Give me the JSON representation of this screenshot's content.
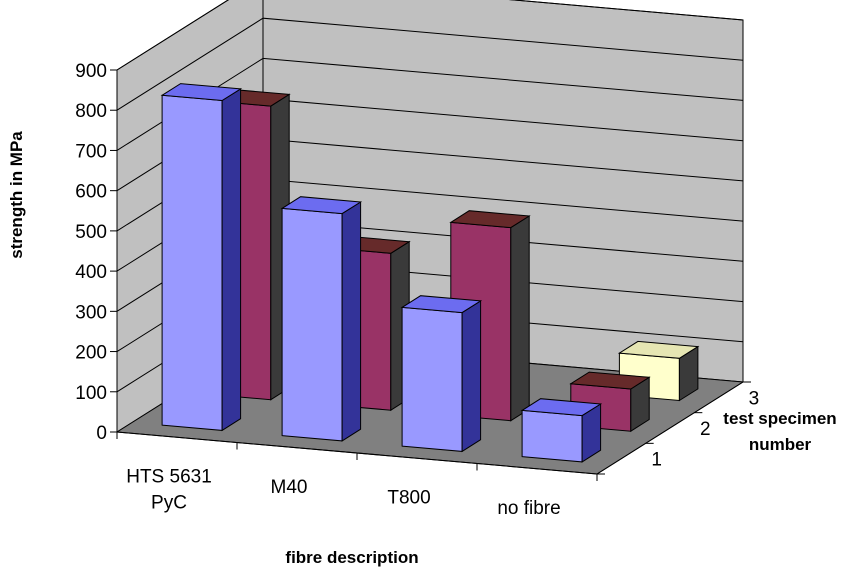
{
  "chart_data": {
    "type": "bar",
    "variant": "3d-clustered-depth",
    "title": "",
    "xlabel": "fibre description",
    "ylabel": "strength in MPa",
    "zlabel": "test specimen number",
    "ylim": [
      0,
      900
    ],
    "yticks": [
      0,
      100,
      200,
      300,
      400,
      500,
      600,
      700,
      800,
      900
    ],
    "categories": [
      "HTS 5631 PyC",
      "M40",
      "T800",
      "no fibre"
    ],
    "category_lines": [
      [
        "HTS 5631",
        "PyC"
      ],
      [
        "M40"
      ],
      [
        "T800"
      ],
      [
        "no fibre"
      ]
    ],
    "depth_ticks": [
      "1",
      "2",
      "3"
    ],
    "series": [
      {
        "name": "1",
        "values": [
          820,
          565,
          345,
          115
        ],
        "colors": {
          "front": "#9999ff",
          "top": "#6c6cf0",
          "side": "#333399"
        }
      },
      {
        "name": "2",
        "values": [
          730,
          390,
          480,
          105
        ],
        "colors": {
          "front": "#993366",
          "top": "#662a2a",
          "side": "#3a3a3a"
        }
      },
      {
        "name": "3",
        "values": [
          null,
          null,
          null,
          105
        ],
        "colors": {
          "front": "#ffffcc",
          "top": "#e6e6b3",
          "side": "#3a3a3a"
        }
      }
    ],
    "grid": true,
    "colors": {
      "walls": "#c0c0c0",
      "floor": "#808080",
      "gridline": "#000000"
    }
  }
}
